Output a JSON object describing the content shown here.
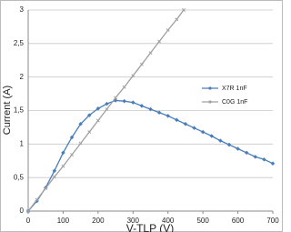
{
  "chart_data": {
    "type": "line",
    "x_label": "V-TLP (V)",
    "y_label": "Current (A)",
    "xlim": [
      0,
      700
    ],
    "xticks": [
      0,
      100,
      200,
      300,
      400,
      500,
      600,
      700
    ],
    "ylim": [
      0,
      3
    ],
    "yticks": [
      0,
      {
        "value": 0.5,
        "label": "0,5"
      },
      1,
      {
        "value": 1.5,
        "label": "1,5"
      },
      2,
      {
        "value": 2.5,
        "label": "2,5"
      },
      3
    ],
    "grid": true,
    "legend": "right",
    "series": [
      {
        "name": "X7R 1nF",
        "color": "#4a7ebb",
        "x": [
          0,
          25,
          50,
          75,
          100,
          125,
          150,
          175,
          200,
          225,
          250,
          275,
          300,
          325,
          350,
          375,
          400,
          425,
          450,
          475,
          500,
          525,
          550,
          575,
          600,
          625,
          650,
          675,
          700
        ],
        "values": [
          0,
          0.15,
          0.35,
          0.6,
          0.87,
          1.1,
          1.3,
          1.43,
          1.53,
          1.6,
          1.65,
          1.64,
          1.62,
          1.57,
          1.52,
          1.47,
          1.42,
          1.36,
          1.3,
          1.24,
          1.18,
          1.12,
          1.05,
          0.99,
          0.93,
          0.87,
          0.81,
          0.77,
          0.71
        ]
      },
      {
        "name": "C0G 1nF",
        "color": "#a0a0a0",
        "x": [
          0,
          25,
          50,
          75,
          100,
          125,
          150,
          175,
          200,
          225,
          250,
          275,
          300,
          325,
          350,
          375,
          400,
          425,
          445
        ],
        "values": [
          0,
          0.17,
          0.34,
          0.51,
          0.67,
          0.84,
          1.01,
          1.18,
          1.35,
          1.52,
          1.69,
          1.85,
          2.02,
          2.19,
          2.36,
          2.53,
          2.7,
          2.86,
          3
        ]
      }
    ]
  }
}
